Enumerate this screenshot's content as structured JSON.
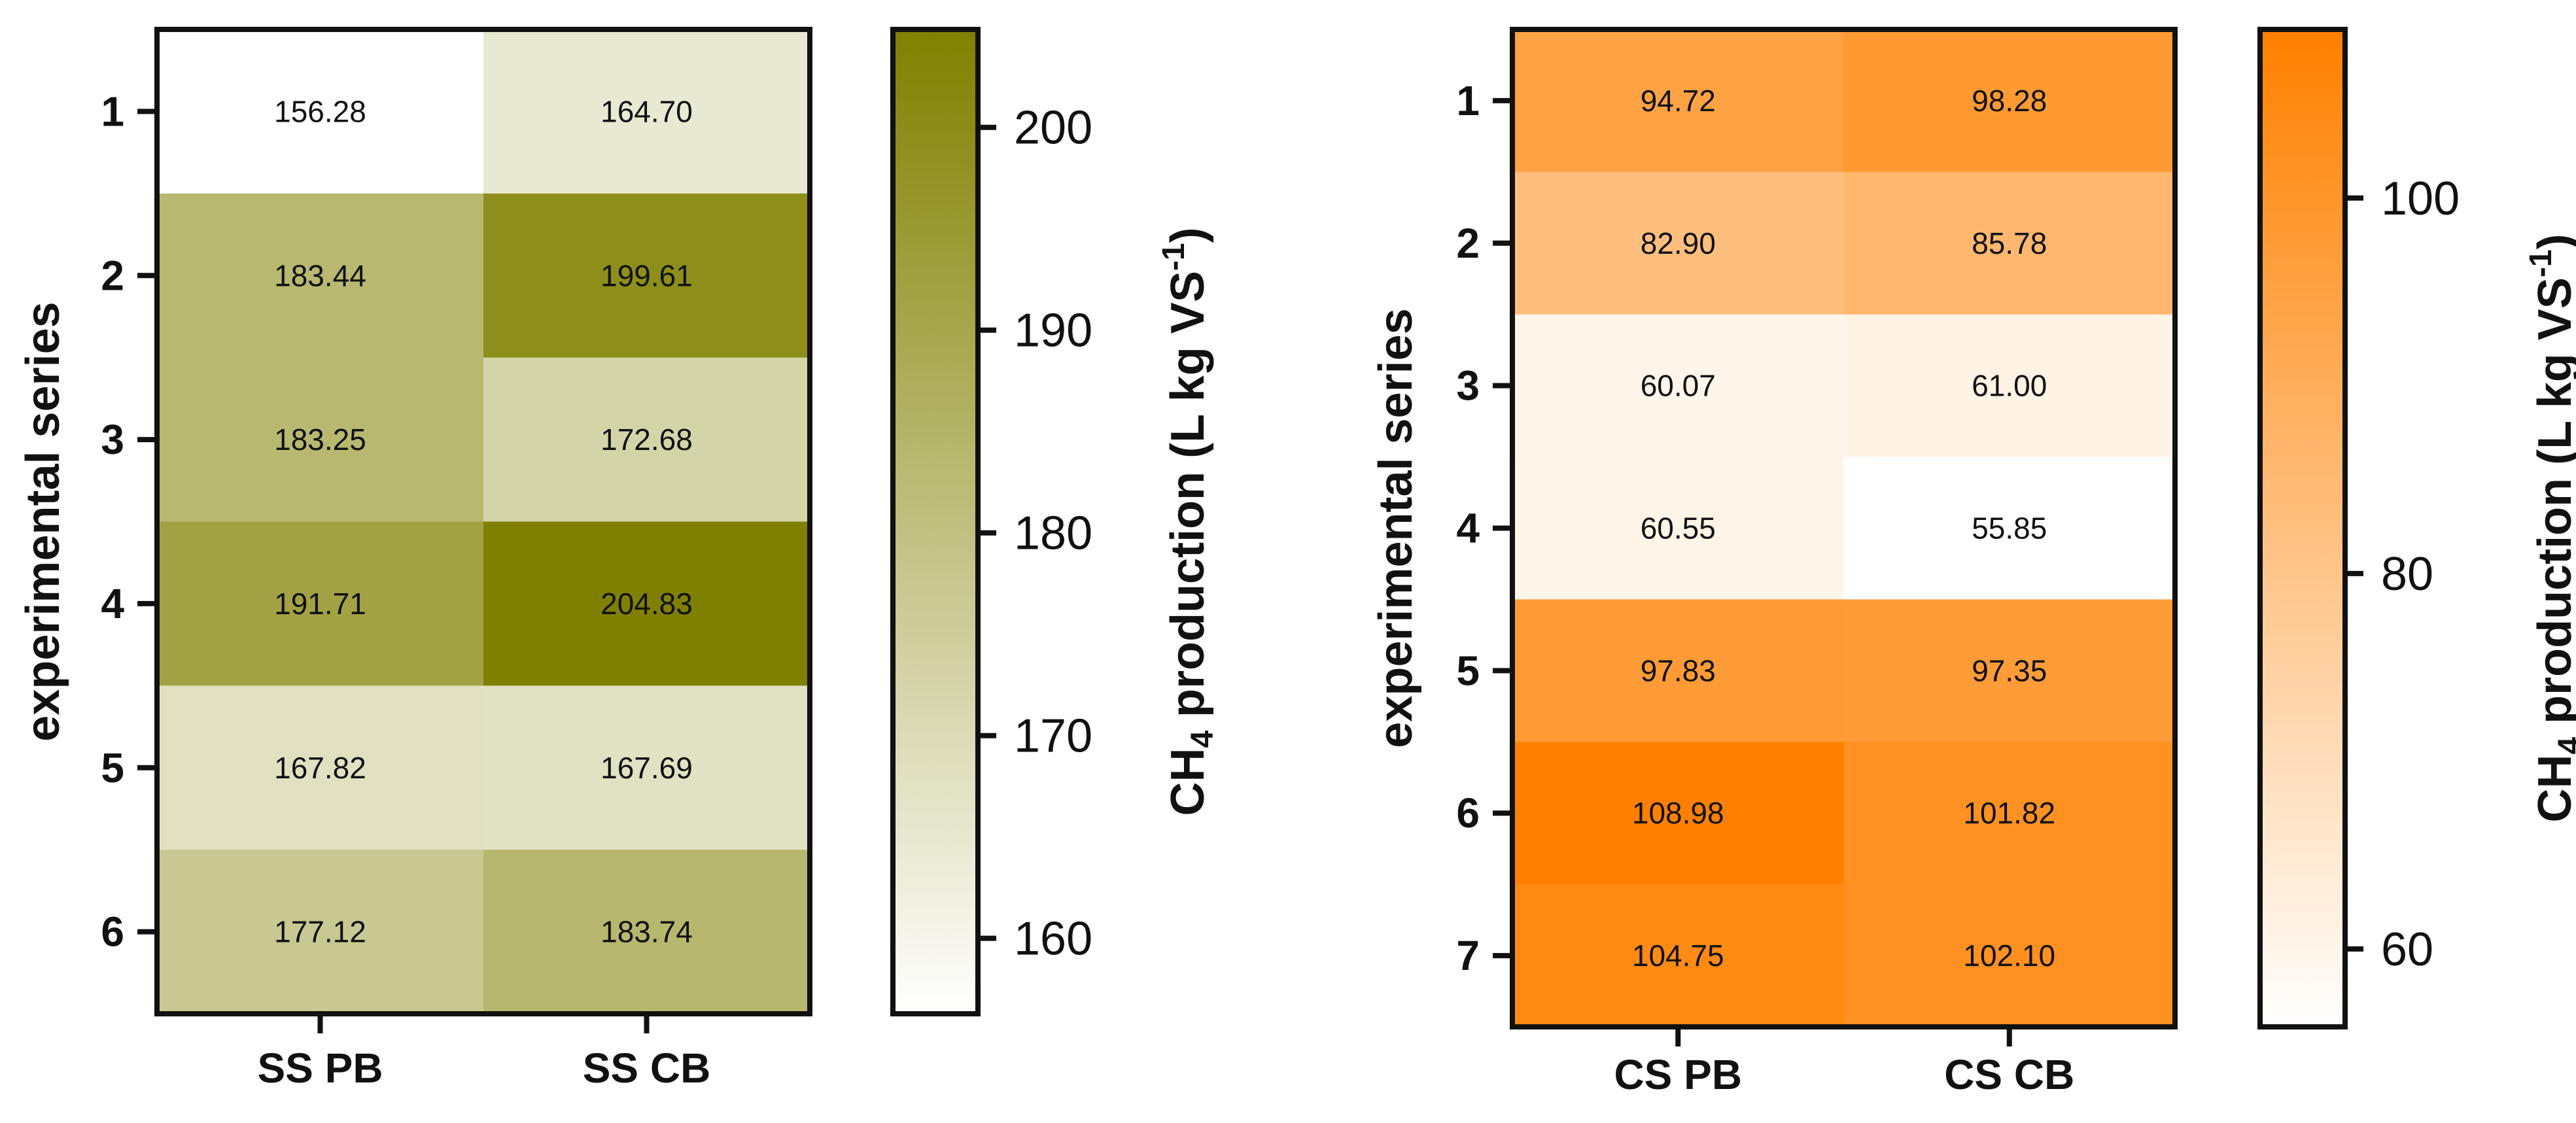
{
  "chart_data": [
    {
      "type": "heatmap",
      "ylabel": "experimental series",
      "colorbar_title_main": "CH",
      "colorbar_title_sub": "4",
      "colorbar_title_rest": " production (L kg VS",
      "colorbar_title_sup": "-1",
      "colorbar_title_end": ")",
      "x_categories": [
        "SS PB",
        "SS CB"
      ],
      "y_categories": [
        "1",
        "2",
        "3",
        "4",
        "5",
        "6"
      ],
      "values": [
        [
          156.28,
          164.7
        ],
        [
          183.44,
          199.61
        ],
        [
          183.25,
          172.68
        ],
        [
          191.71,
          204.83
        ],
        [
          167.82,
          167.69
        ],
        [
          177.12,
          183.74
        ]
      ],
      "value_labels": [
        [
          "156.28",
          "164.70"
        ],
        [
          "183.44",
          "199.61"
        ],
        [
          "183.25",
          "172.68"
        ],
        [
          "191.71",
          "204.83"
        ],
        [
          "167.82",
          "167.69"
        ],
        [
          "177.12",
          "183.74"
        ]
      ],
      "color_range": [
        156.28,
        204.83
      ],
      "color_low": "#ffffff",
      "color_high": "#808000",
      "colorbar_ticks": [
        160,
        170,
        180,
        190,
        200
      ]
    },
    {
      "type": "heatmap",
      "ylabel": "experimental series",
      "colorbar_title_main": "CH",
      "colorbar_title_sub": "4",
      "colorbar_title_rest": " production (L kg VS",
      "colorbar_title_sup": "-1",
      "colorbar_title_end": ")",
      "x_categories": [
        "CS PB",
        "CS CB"
      ],
      "y_categories": [
        "1",
        "2",
        "3",
        "4",
        "5",
        "6",
        "7"
      ],
      "values": [
        [
          94.72,
          98.28
        ],
        [
          82.9,
          85.78
        ],
        [
          60.07,
          61.0
        ],
        [
          60.55,
          55.85
        ],
        [
          97.83,
          97.35
        ],
        [
          108.98,
          101.82
        ],
        [
          104.75,
          102.1
        ]
      ],
      "value_labels": [
        [
          "94.72",
          "98.28"
        ],
        [
          "82.90",
          "85.78"
        ],
        [
          "60.07",
          "61.00"
        ],
        [
          "60.55",
          "55.85"
        ],
        [
          "97.83",
          "97.35"
        ],
        [
          "108.98",
          "101.82"
        ],
        [
          "104.75",
          "102.10"
        ]
      ],
      "color_range": [
        55.85,
        108.98
      ],
      "color_low": "#ffffff",
      "color_high": "#ff8000",
      "colorbar_ticks": [
        60,
        80,
        100
      ]
    }
  ]
}
